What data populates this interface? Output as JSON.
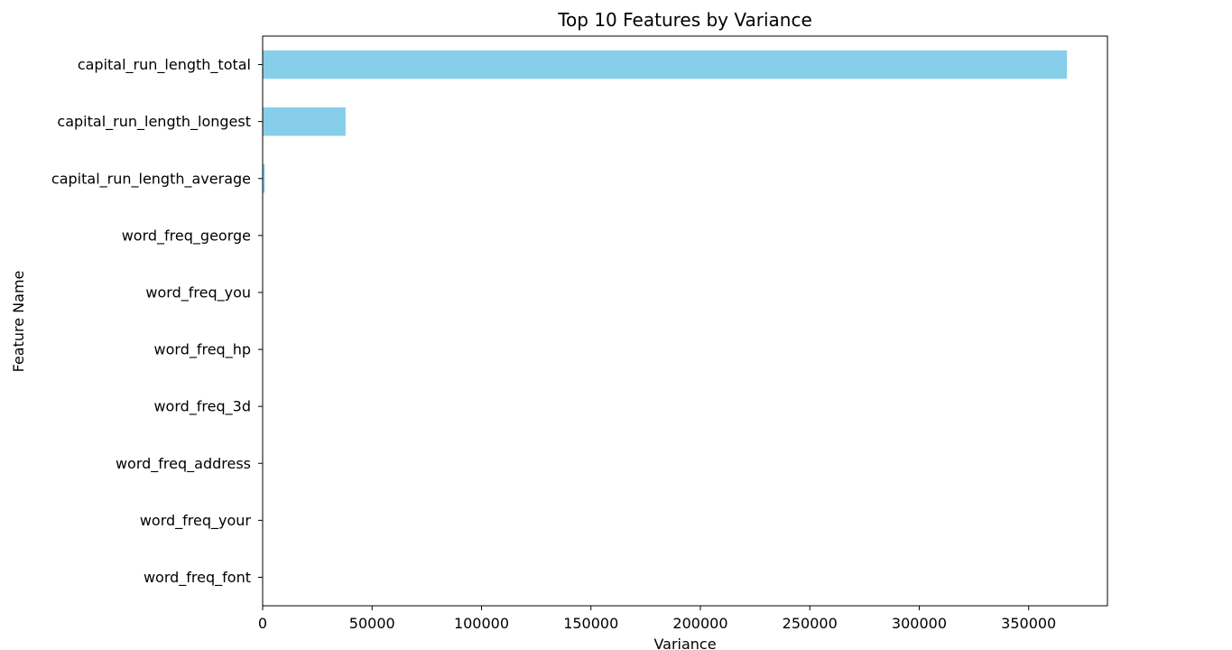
{
  "chart_data": {
    "type": "bar",
    "orientation": "horizontal",
    "title": "Top 10 Features by Variance",
    "xlabel": "Variance",
    "ylabel": "Feature Name",
    "categories": [
      "capital_run_length_total",
      "capital_run_length_longest",
      "capital_run_length_average",
      "word_freq_george",
      "word_freq_you",
      "word_freq_hp",
      "word_freq_3d",
      "word_freq_address",
      "word_freq_your",
      "word_freq_font"
    ],
    "values": [
      367500,
      37900,
      1000,
      11,
      3,
      3,
      2,
      1,
      1,
      1
    ],
    "xlim": [
      0,
      386000
    ],
    "xticks": [
      0,
      50000,
      100000,
      150000,
      200000,
      250000,
      300000,
      350000
    ],
    "xtick_labels": [
      "0",
      "50000",
      "100000",
      "150000",
      "200000",
      "250000",
      "300000",
      "350000"
    ],
    "grid": false,
    "bar_color": "#87ceeb",
    "legend": "none"
  }
}
